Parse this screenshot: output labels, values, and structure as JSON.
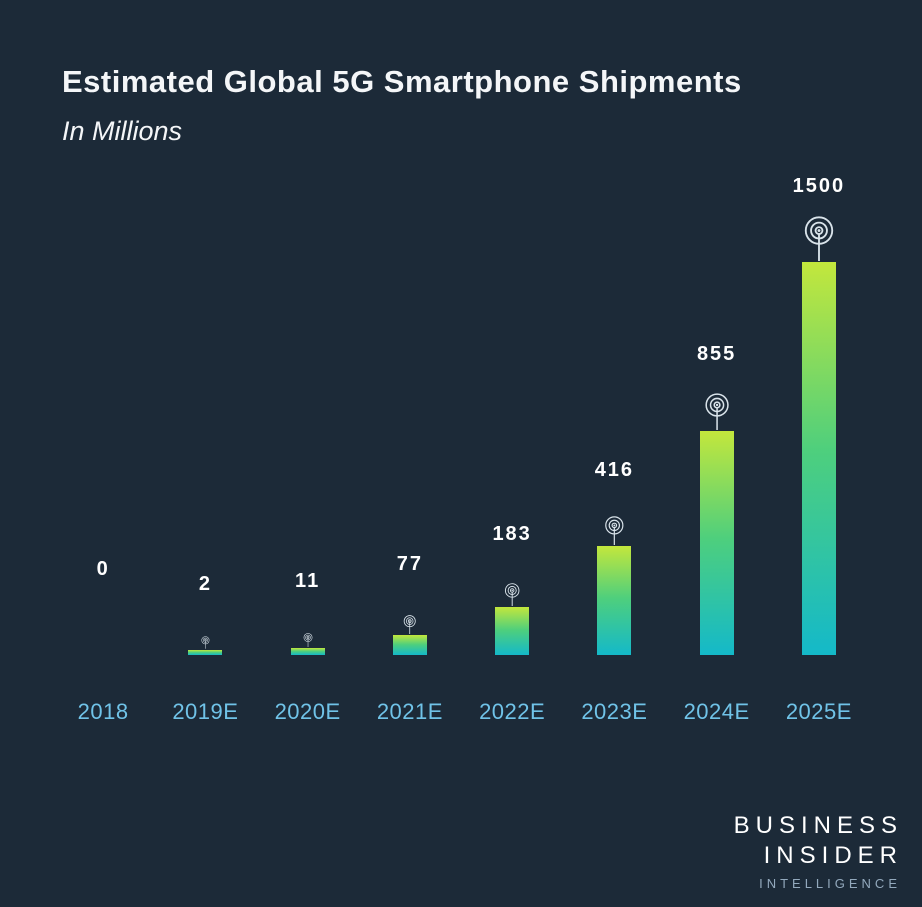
{
  "title": "Estimated Global 5G Smartphone Shipments",
  "subtitle": "In Millions",
  "chart_data": {
    "type": "bar",
    "title": "Estimated Global 5G Smartphone Shipments",
    "subtitle": "In Millions",
    "categories": [
      "2018",
      "2019E",
      "2020E",
      "2021E",
      "2022E",
      "2023E",
      "2024E",
      "2025E"
    ],
    "values": [
      0,
      2,
      11,
      77,
      183,
      416,
      855,
      1500
    ],
    "value_labels": [
      "0",
      "2",
      "11",
      "77",
      "183",
      "416",
      "855",
      "1500"
    ],
    "ylim": [
      0,
      1500
    ],
    "xlabel": "",
    "ylabel": "",
    "grid": false,
    "legend": false,
    "bar_icon": "5g-antenna-icon",
    "colors": {
      "background": "#1c2a38",
      "bar_gradient_top": "#c3e73c",
      "bar_gradient_mid": "#4ecf7d",
      "bar_gradient_bottom": "#14b9c9",
      "category_label": "#70c3e8",
      "value_label": "#ffffff",
      "icon": "#d9e3ea",
      "title_text": "#f4f6f8",
      "branding_secondary": "#93a9bd"
    }
  },
  "branding": {
    "line1": "BUSINESS",
    "line2": "INSIDER",
    "line3": "INTELLIGENCE"
  }
}
